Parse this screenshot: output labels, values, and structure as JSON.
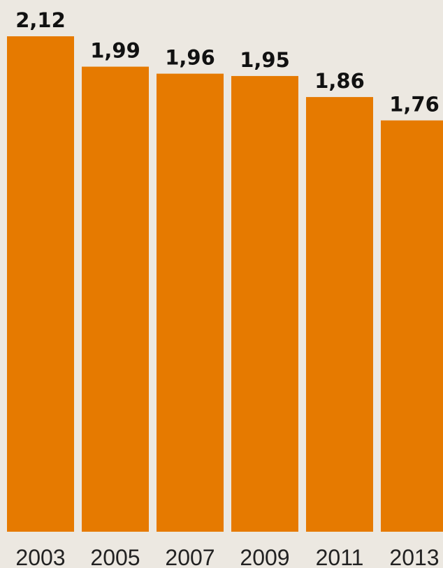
{
  "chart_data": {
    "type": "bar",
    "categories": [
      "2003",
      "2005",
      "2007",
      "2009",
      "2011",
      "2013"
    ],
    "values": [
      2.12,
      1.99,
      1.96,
      1.95,
      1.86,
      1.76
    ],
    "value_labels": [
      "2,12",
      "1,99",
      "1,96",
      "1,95",
      "1,86",
      "1,76"
    ],
    "ylim": [
      0,
      2.12
    ],
    "grid": false,
    "bar_color": "#E67A00",
    "background_color": "#ECE8E1"
  }
}
